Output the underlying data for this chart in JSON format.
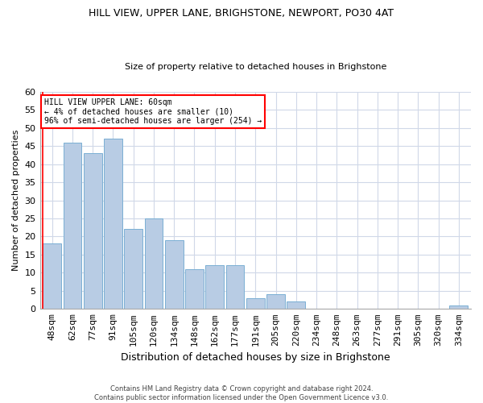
{
  "title": "HILL VIEW, UPPER LANE, BRIGHSTONE, NEWPORT, PO30 4AT",
  "subtitle": "Size of property relative to detached houses in Brighstone",
  "xlabel": "Distribution of detached houses by size in Brighstone",
  "ylabel": "Number of detached properties",
  "categories": [
    "48sqm",
    "62sqm",
    "77sqm",
    "91sqm",
    "105sqm",
    "120sqm",
    "134sqm",
    "148sqm",
    "162sqm",
    "177sqm",
    "191sqm",
    "205sqm",
    "220sqm",
    "234sqm",
    "248sqm",
    "263sqm",
    "277sqm",
    "291sqm",
    "305sqm",
    "320sqm",
    "334sqm"
  ],
  "values": [
    18,
    46,
    43,
    47,
    22,
    25,
    19,
    11,
    12,
    12,
    3,
    4,
    2,
    0,
    0,
    0,
    0,
    0,
    0,
    0,
    1
  ],
  "bar_color": "#b8cce4",
  "bar_edge_color": "#7bafd4",
  "ylim": [
    0,
    60
  ],
  "yticks": [
    0,
    5,
    10,
    15,
    20,
    25,
    30,
    35,
    40,
    45,
    50,
    55,
    60
  ],
  "annotation_text_line1": "HILL VIEW UPPER LANE: 60sqm",
  "annotation_text_line2": "← 4% of detached houses are smaller (10)",
  "annotation_text_line3": "96% of semi-detached houses are larger (254) →",
  "red_line_bar_index": 0,
  "footer_line1": "Contains HM Land Registry data © Crown copyright and database right 2024.",
  "footer_line2": "Contains public sector information licensed under the Open Government Licence v3.0.",
  "background_color": "#ffffff",
  "grid_color": "#d0d8e8",
  "title_fontsize": 9,
  "subtitle_fontsize": 8,
  "ylabel_fontsize": 8,
  "xlabel_fontsize": 9,
  "tick_fontsize": 7,
  "ytick_fontsize": 8,
  "annotation_fontsize": 7,
  "footer_fontsize": 6
}
